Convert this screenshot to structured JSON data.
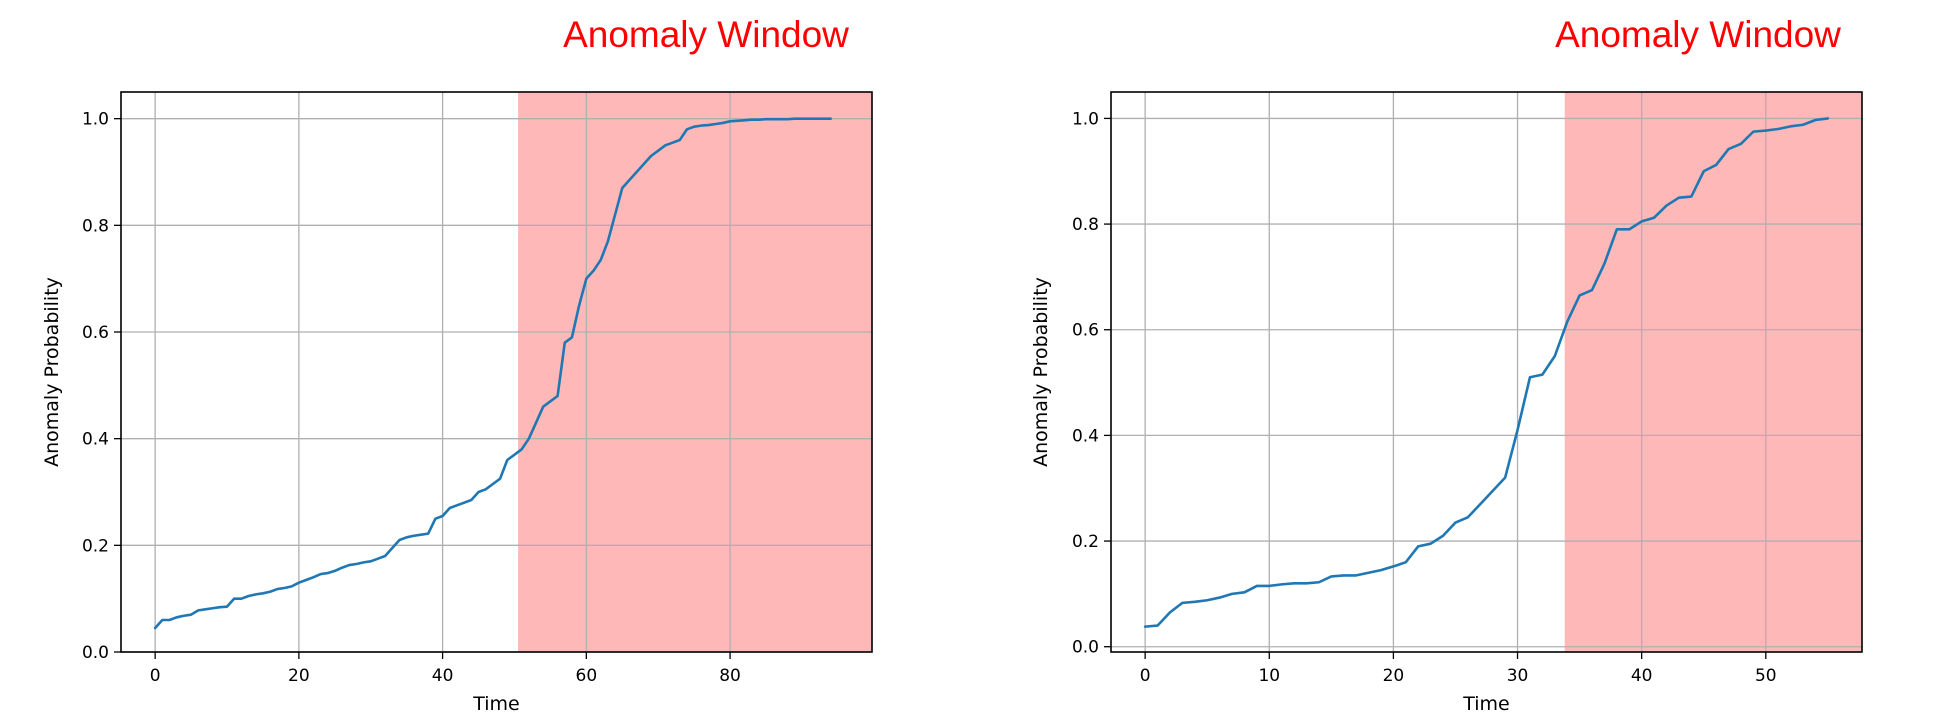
{
  "chart_data": [
    {
      "type": "line",
      "title": "Anomaly Window",
      "xlabel": "Time",
      "ylabel": "Anomaly Probability",
      "xlim": [
        -4.75,
        99.75
      ],
      "ylim": [
        0.0,
        1.05
      ],
      "xticks": [
        0,
        20,
        40,
        60,
        80
      ],
      "yticks": [
        0.0,
        0.2,
        0.4,
        0.6,
        0.8,
        1.0
      ],
      "xtick_labels": [
        "0",
        "20",
        "40",
        "60",
        "80"
      ],
      "ytick_labels": [
        "0.0",
        "0.2",
        "0.4",
        "0.6",
        "0.8",
        "1.0"
      ],
      "grid": true,
      "shaded_region": {
        "x_start": 50.5,
        "x_end": 99.75,
        "color": "#ffb8b8"
      },
      "line_color": "#1f77b4",
      "x": [
        0,
        1,
        2,
        3,
        4,
        5,
        6,
        7,
        8,
        9,
        10,
        11,
        12,
        13,
        14,
        15,
        16,
        17,
        18,
        19,
        20,
        21,
        22,
        23,
        24,
        25,
        26,
        27,
        28,
        29,
        30,
        31,
        32,
        33,
        34,
        35,
        36,
        37,
        38,
        39,
        40,
        41,
        42,
        43,
        44,
        45,
        46,
        47,
        48,
        49,
        50,
        51,
        52,
        53,
        54,
        55,
        56,
        57,
        58,
        59,
        60,
        61,
        62,
        63,
        64,
        65,
        66,
        67,
        68,
        69,
        70,
        71,
        72,
        73,
        74,
        75,
        76,
        77,
        78,
        79,
        80,
        81,
        82,
        83,
        84,
        85,
        86,
        87,
        88,
        89,
        90,
        91,
        92,
        93,
        94
      ],
      "y": [
        0.045,
        0.06,
        0.06,
        0.065,
        0.068,
        0.07,
        0.078,
        0.08,
        0.082,
        0.084,
        0.085,
        0.1,
        0.1,
        0.105,
        0.108,
        0.11,
        0.113,
        0.118,
        0.12,
        0.123,
        0.13,
        0.135,
        0.14,
        0.146,
        0.148,
        0.152,
        0.158,
        0.163,
        0.165,
        0.168,
        0.17,
        0.175,
        0.18,
        0.195,
        0.21,
        0.215,
        0.218,
        0.22,
        0.222,
        0.25,
        0.255,
        0.27,
        0.275,
        0.28,
        0.285,
        0.3,
        0.305,
        0.315,
        0.325,
        0.36,
        0.37,
        0.38,
        0.4,
        0.43,
        0.46,
        0.47,
        0.48,
        0.58,
        0.59,
        0.65,
        0.7,
        0.715,
        0.735,
        0.77,
        0.82,
        0.87,
        0.885,
        0.9,
        0.915,
        0.93,
        0.94,
        0.95,
        0.955,
        0.96,
        0.98,
        0.985,
        0.987,
        0.988,
        0.99,
        0.992,
        0.995,
        0.996,
        0.997,
        0.998,
        0.998,
        0.999,
        0.999,
        0.999,
        0.999,
        1.0,
        1.0,
        1.0,
        1.0,
        1.0,
        1.0
      ]
    },
    {
      "type": "line",
      "title": "Anomaly Window",
      "xlabel": "Time",
      "ylabel": "Anomaly Probability",
      "xlim": [
        -2.75,
        57.75
      ],
      "ylim": [
        -0.01,
        1.05
      ],
      "xticks": [
        0,
        10,
        20,
        30,
        40,
        50
      ],
      "yticks": [
        0.0,
        0.2,
        0.4,
        0.6,
        0.8,
        1.0
      ],
      "xtick_labels": [
        "0",
        "10",
        "20",
        "30",
        "40",
        "50"
      ],
      "ytick_labels": [
        "0.0",
        "0.2",
        "0.4",
        "0.6",
        "0.8",
        "1.0"
      ],
      "grid": true,
      "shaded_region": {
        "x_start": 33.8,
        "x_end": 57.75,
        "color": "#ffb8b8"
      },
      "line_color": "#1f77b4",
      "x": [
        0,
        1,
        2,
        3,
        4,
        5,
        6,
        7,
        8,
        9,
        10,
        11,
        12,
        13,
        14,
        15,
        16,
        17,
        18,
        19,
        20,
        21,
        22,
        23,
        24,
        25,
        26,
        27,
        28,
        29,
        30,
        31,
        32,
        33,
        34,
        35,
        36,
        37,
        38,
        39,
        40,
        41,
        42,
        43,
        44,
        45,
        46,
        47,
        48,
        49,
        50,
        51,
        52,
        53,
        54,
        55
      ],
      "y": [
        0.038,
        0.04,
        0.065,
        0.083,
        0.085,
        0.088,
        0.093,
        0.1,
        0.103,
        0.115,
        0.115,
        0.118,
        0.12,
        0.12,
        0.122,
        0.133,
        0.135,
        0.135,
        0.14,
        0.145,
        0.152,
        0.16,
        0.19,
        0.195,
        0.21,
        0.235,
        0.245,
        0.27,
        0.295,
        0.32,
        0.41,
        0.51,
        0.515,
        0.55,
        0.615,
        0.665,
        0.675,
        0.725,
        0.79,
        0.79,
        0.805,
        0.812,
        0.835,
        0.85,
        0.852,
        0.9,
        0.912,
        0.942,
        0.952,
        0.975,
        0.977,
        0.98,
        0.985,
        0.988,
        0.997,
        1.0
      ]
    }
  ]
}
